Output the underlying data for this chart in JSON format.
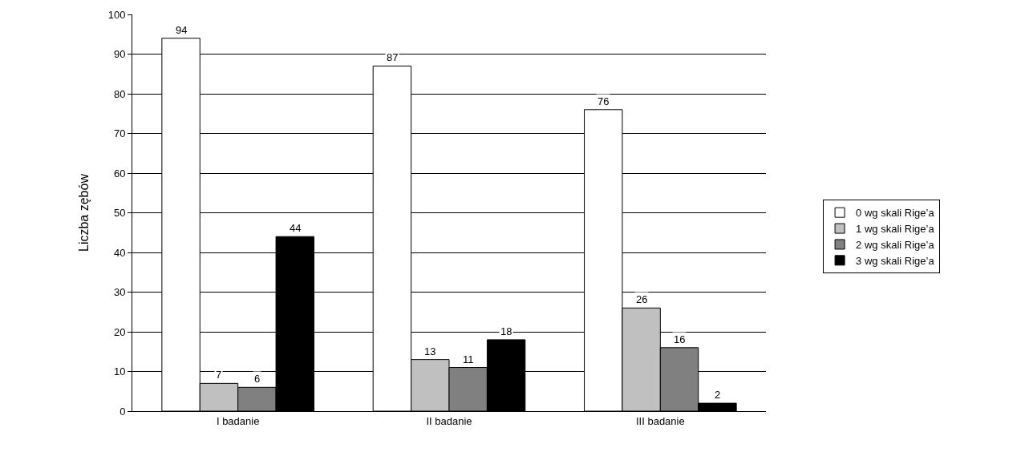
{
  "chart_data": {
    "type": "bar",
    "ylabel": "Liczba zębów",
    "categories": [
      "I badanie",
      "II badanie",
      "III badanie"
    ],
    "series": [
      {
        "name": "0 wg skali Rige’a",
        "color": "#ffffff",
        "values": [
          94,
          87,
          76
        ]
      },
      {
        "name": "1 wg skali Rige’a",
        "color": "#c0c0c0",
        "values": [
          7,
          13,
          26
        ]
      },
      {
        "name": "2 wg skali Rige’a",
        "color": "#808080",
        "values": [
          6,
          11,
          16
        ]
      },
      {
        "name": "3 wg skali Rige’a",
        "color": "#000000",
        "values": [
          44,
          18,
          2
        ]
      }
    ],
    "ylim": [
      0,
      100
    ],
    "yticks": [
      0,
      10,
      20,
      30,
      40,
      50,
      60,
      70,
      80,
      90,
      100
    ],
    "grid": "y",
    "legend": "right",
    "data_labels": true
  }
}
